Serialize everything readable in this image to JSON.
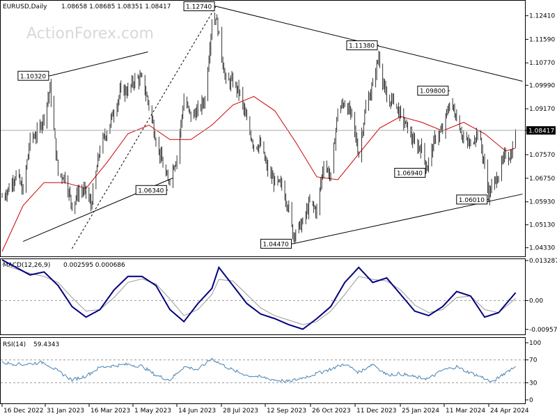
{
  "header": {
    "symbol": "EURUSD,Daily",
    "ohlc": "1.08658 1.08685 1.08351 1.08417",
    "watermark": "ActionForex.com"
  },
  "chart_data": [
    {
      "type": "candlestick",
      "name": "EURUSD,Daily",
      "ylim": [
        1.0403,
        1.1291
      ],
      "y_ticks": [
        "1.12410",
        "1.11590",
        "1.10770",
        "1.09990",
        "1.09170",
        "1.08417",
        "1.07570",
        "1.06750",
        "1.05930",
        "1.05130",
        "1.04330"
      ],
      "current_price": "1.08417",
      "annotations": [
        {
          "label": "1.10320",
          "x": "2023-02-02",
          "value": 1.1032
        },
        {
          "label": "1.12740",
          "x": "2023-07-18",
          "value": 1.1274
        },
        {
          "label": "1.06340",
          "x": "2023-05-31",
          "value": 1.0634
        },
        {
          "label": "1.04470",
          "x": "2023-10-03",
          "value": 1.0447
        },
        {
          "label": "1.11380",
          "x": "2023-12-28",
          "value": 1.1138
        },
        {
          "label": "1.09800",
          "x": "2024-03-08",
          "value": 1.098
        },
        {
          "label": "1.06940",
          "x": "2024-02-14",
          "value": 1.0694
        },
        {
          "label": "1.06010",
          "x": "2024-04-16",
          "value": 1.0601
        }
      ],
      "price_path": [
        [
          "2022-12-16",
          1.061
        ],
        [
          "2022-12-23",
          1.064
        ],
        [
          "2022-12-30",
          1.069
        ],
        [
          "2023-01-06",
          1.063
        ],
        [
          "2023-01-13",
          1.081
        ],
        [
          "2023-01-20",
          1.083
        ],
        [
          "2023-01-27",
          1.089
        ],
        [
          "2023-02-02",
          1.099
        ],
        [
          "2023-02-10",
          1.069
        ],
        [
          "2023-02-17",
          1.068
        ],
        [
          "2023-02-24",
          1.058
        ],
        [
          "2023-03-03",
          1.063
        ],
        [
          "2023-03-10",
          1.063
        ],
        [
          "2023-03-15",
          1.058
        ],
        [
          "2023-03-24",
          1.078
        ],
        [
          "2023-03-31",
          1.084
        ],
        [
          "2023-04-07",
          1.091
        ],
        [
          "2023-04-14",
          1.098
        ],
        [
          "2023-04-21",
          1.098
        ],
        [
          "2023-04-28",
          1.102
        ],
        [
          "2023-05-05",
          1.102
        ],
        [
          "2023-05-12",
          1.093
        ],
        [
          "2023-05-19",
          1.081
        ],
        [
          "2023-05-26",
          1.072
        ],
        [
          "2023-05-31",
          1.066
        ],
        [
          "2023-06-09",
          1.075
        ],
        [
          "2023-06-16",
          1.095
        ],
        [
          "2023-06-23",
          1.089
        ],
        [
          "2023-06-30",
          1.091
        ],
        [
          "2023-07-07",
          1.095
        ],
        [
          "2023-07-14",
          1.122
        ],
        [
          "2023-07-18",
          1.124
        ],
        [
          "2023-07-28",
          1.101
        ],
        [
          "2023-08-04",
          1.101
        ],
        [
          "2023-08-11",
          1.097
        ],
        [
          "2023-08-18",
          1.087
        ],
        [
          "2023-08-25",
          1.079
        ],
        [
          "2023-09-01",
          1.079
        ],
        [
          "2023-09-08",
          1.07
        ],
        [
          "2023-09-15",
          1.066
        ],
        [
          "2023-09-22",
          1.065
        ],
        [
          "2023-09-29",
          1.057
        ],
        [
          "2023-10-03",
          1.048
        ],
        [
          "2023-10-13",
          1.052
        ],
        [
          "2023-10-20",
          1.059
        ],
        [
          "2023-10-27",
          1.056
        ],
        [
          "2023-11-03",
          1.073
        ],
        [
          "2023-11-10",
          1.068
        ],
        [
          "2023-11-17",
          1.091
        ],
        [
          "2023-11-24",
          1.094
        ],
        [
          "2023-12-01",
          1.089
        ],
        [
          "2023-12-08",
          1.076
        ],
        [
          "2023-12-15",
          1.092
        ],
        [
          "2023-12-22",
          1.1
        ],
        [
          "2023-12-28",
          1.11
        ],
        [
          "2024-01-05",
          1.094
        ],
        [
          "2024-01-12",
          1.095
        ],
        [
          "2024-01-19",
          1.089
        ],
        [
          "2024-01-26",
          1.085
        ],
        [
          "2024-02-02",
          1.079
        ],
        [
          "2024-02-09",
          1.078
        ],
        [
          "2024-02-14",
          1.071
        ],
        [
          "2024-02-23",
          1.082
        ],
        [
          "2024-03-01",
          1.084
        ],
        [
          "2024-03-08",
          1.094
        ],
        [
          "2024-03-15",
          1.089
        ],
        [
          "2024-03-22",
          1.081
        ],
        [
          "2024-03-29",
          1.079
        ],
        [
          "2024-04-05",
          1.084
        ],
        [
          "2024-04-10",
          1.076
        ],
        [
          "2024-04-16",
          1.062
        ],
        [
          "2024-04-26",
          1.069
        ],
        [
          "2024-05-03",
          1.076
        ],
        [
          "2024-05-08",
          1.075
        ],
        [
          "2024-05-10",
          1.078
        ],
        [
          "2024-05-13",
          1.084
        ]
      ],
      "moving_average": [
        [
          "2022-12-16",
          1.042
        ],
        [
          "2023-01-06",
          1.058
        ],
        [
          "2023-01-27",
          1.066
        ],
        [
          "2023-02-17",
          1.066
        ],
        [
          "2023-03-10",
          1.064
        ],
        [
          "2023-03-31",
          1.073
        ],
        [
          "2023-04-21",
          1.083
        ],
        [
          "2023-05-12",
          1.086
        ],
        [
          "2023-06-02",
          1.081
        ],
        [
          "2023-06-23",
          1.081
        ],
        [
          "2023-07-14",
          1.086
        ],
        [
          "2023-08-04",
          1.093
        ],
        [
          "2023-08-25",
          1.096
        ],
        [
          "2023-09-15",
          1.091
        ],
        [
          "2023-10-06",
          1.08
        ],
        [
          "2023-10-27",
          1.068
        ],
        [
          "2023-11-17",
          1.067
        ],
        [
          "2023-12-08",
          1.076
        ],
        [
          "2023-12-29",
          1.085
        ],
        [
          "2024-01-19",
          1.089
        ],
        [
          "2024-02-09",
          1.087
        ],
        [
          "2024-03-01",
          1.084
        ],
        [
          "2024-03-22",
          1.087
        ],
        [
          "2024-04-12",
          1.083
        ],
        [
          "2024-05-03",
          1.077
        ],
        [
          "2024-05-13",
          1.078
        ]
      ],
      "trendlines": [
        {
          "from": [
            "2023-02-02",
            1.1032
          ],
          "to": [
            "2023-05-11",
            1.1115
          ]
        },
        {
          "from": [
            "2023-01-06",
            1.0455
          ],
          "to": [
            "2023-06-05",
            1.0676
          ]
        },
        {
          "from": [
            "2023-02-24",
            1.043
          ],
          "to": [
            "2023-07-18",
            1.1274
          ],
          "style": "dashed"
        },
        {
          "from": [
            "2023-07-18",
            1.1274
          ],
          "to": [
            "2024-05-20",
            1.1013
          ]
        },
        {
          "from": [
            "2023-10-03",
            1.0447
          ],
          "to": [
            "2024-05-20",
            1.062
          ]
        }
      ]
    },
    {
      "type": "line",
      "name": "MACD(12,26,9)",
      "header_values": "0.002595 0.000686",
      "y_ticks": [
        "0.013287",
        "0.00",
        "-0.009572"
      ],
      "ylim": [
        -0.011,
        0.0135
      ],
      "series": [
        {
          "values": [
            [
              "2022-12-16",
              0.0135
            ],
            [
              "2022-12-30",
              0.011
            ],
            [
              "2023-01-13",
              0.0085
            ],
            [
              "2023-01-27",
              0.0095
            ],
            [
              "2023-02-10",
              0.005
            ],
            [
              "2023-02-24",
              -0.002
            ],
            [
              "2023-03-10",
              -0.0055
            ],
            [
              "2023-03-24",
              -0.003
            ],
            [
              "2023-04-07",
              0.0035
            ],
            [
              "2023-04-21",
              0.008
            ],
            [
              "2023-05-05",
              0.008
            ],
            [
              "2023-05-19",
              0.005
            ],
            [
              "2023-06-02",
              -0.003
            ],
            [
              "2023-06-16",
              -0.007
            ],
            [
              "2023-06-30",
              -0.001
            ],
            [
              "2023-07-14",
              0.004
            ],
            [
              "2023-07-21",
              0.011
            ],
            [
              "2023-08-04",
              0.005
            ],
            [
              "2023-08-18",
              -0.001
            ],
            [
              "2023-09-01",
              -0.0045
            ],
            [
              "2023-09-15",
              -0.006
            ],
            [
              "2023-09-29",
              -0.008
            ],
            [
              "2023-10-13",
              -0.0095
            ],
            [
              "2023-10-27",
              -0.006
            ],
            [
              "2023-11-10",
              -0.002
            ],
            [
              "2023-11-24",
              0.006
            ],
            [
              "2023-12-08",
              0.011
            ],
            [
              "2023-12-22",
              0.006
            ],
            [
              "2024-01-05",
              0.0075
            ],
            [
              "2024-01-19",
              0.002
            ],
            [
              "2024-02-02",
              -0.0035
            ],
            [
              "2024-02-16",
              -0.005
            ],
            [
              "2024-03-01",
              -0.002
            ],
            [
              "2024-03-15",
              0.003
            ],
            [
              "2024-03-29",
              0.0015
            ],
            [
              "2024-04-12",
              -0.0055
            ],
            [
              "2024-04-26",
              -0.004
            ],
            [
              "2024-05-13",
              0.0026
            ]
          ]
        },
        {
          "values": [
            [
              "2022-12-16",
              0.012
            ],
            [
              "2022-12-30",
              0.0105
            ],
            [
              "2023-01-13",
              0.009
            ],
            [
              "2023-01-27",
              0.008
            ],
            [
              "2023-02-10",
              0.006
            ],
            [
              "2023-02-24",
              0.001
            ],
            [
              "2023-03-10",
              -0.0035
            ],
            [
              "2023-03-24",
              -0.003
            ],
            [
              "2023-04-07",
              0.001
            ],
            [
              "2023-04-21",
              0.006
            ],
            [
              "2023-05-05",
              0.0072
            ],
            [
              "2023-05-19",
              0.0055
            ],
            [
              "2023-06-02",
              0.0005
            ],
            [
              "2023-06-16",
              -0.005
            ],
            [
              "2023-06-30",
              -0.003
            ],
            [
              "2023-07-14",
              0.002
            ],
            [
              "2023-07-21",
              0.007
            ],
            [
              "2023-08-04",
              0.0065
            ],
            [
              "2023-08-18",
              0.002
            ],
            [
              "2023-09-01",
              -0.0025
            ],
            [
              "2023-09-15",
              -0.005
            ],
            [
              "2023-09-29",
              -0.0065
            ],
            [
              "2023-10-13",
              -0.008
            ],
            [
              "2023-10-27",
              -0.007
            ],
            [
              "2023-11-10",
              -0.0035
            ],
            [
              "2023-11-24",
              0.002
            ],
            [
              "2023-12-08",
              0.008
            ],
            [
              "2023-12-22",
              0.007
            ],
            [
              "2024-01-05",
              0.0065
            ],
            [
              "2024-01-19",
              0.0035
            ],
            [
              "2024-02-02",
              -0.0015
            ],
            [
              "2024-02-16",
              -0.004
            ],
            [
              "2024-03-01",
              -0.003
            ],
            [
              "2024-03-15",
              0.001
            ],
            [
              "2024-03-29",
              0.0015
            ],
            [
              "2024-04-12",
              -0.003
            ],
            [
              "2024-04-26",
              -0.004
            ],
            [
              "2024-05-13",
              0.0007
            ]
          ]
        }
      ]
    },
    {
      "type": "line",
      "name": "RSI(14)",
      "header_value": "59.4343",
      "ylim": [
        0,
        100
      ],
      "y_ticks": [
        "100",
        "70",
        "30",
        "0"
      ],
      "levels": [
        70,
        30
      ],
      "series": [
        {
          "values": [
            [
              "2022-12-16",
              65
            ],
            [
              "2023-01-06",
              62
            ],
            [
              "2023-01-27",
              66
            ],
            [
              "2023-02-10",
              50
            ],
            [
              "2023-02-24",
              35
            ],
            [
              "2023-03-10",
              42
            ],
            [
              "2023-03-24",
              57
            ],
            [
              "2023-04-07",
              60
            ],
            [
              "2023-04-21",
              62
            ],
            [
              "2023-05-05",
              59
            ],
            [
              "2023-05-19",
              43
            ],
            [
              "2023-06-02",
              35
            ],
            [
              "2023-06-16",
              58
            ],
            [
              "2023-06-30",
              53
            ],
            [
              "2023-07-14",
              72
            ],
            [
              "2023-07-21",
              65
            ],
            [
              "2023-08-04",
              52
            ],
            [
              "2023-08-18",
              43
            ],
            [
              "2023-09-01",
              40
            ],
            [
              "2023-09-15",
              35
            ],
            [
              "2023-09-29",
              32
            ],
            [
              "2023-10-13",
              39
            ],
            [
              "2023-10-27",
              46
            ],
            [
              "2023-11-10",
              54
            ],
            [
              "2023-11-24",
              63
            ],
            [
              "2023-12-08",
              48
            ],
            [
              "2023-12-22",
              63
            ],
            [
              "2024-01-05",
              44
            ],
            [
              "2024-01-19",
              46
            ],
            [
              "2024-02-02",
              40
            ],
            [
              "2024-02-16",
              37
            ],
            [
              "2024-03-01",
              52
            ],
            [
              "2024-03-15",
              58
            ],
            [
              "2024-03-29",
              47
            ],
            [
              "2024-04-12",
              38
            ],
            [
              "2024-04-19",
              30
            ],
            [
              "2024-05-03",
              48
            ],
            [
              "2024-05-13",
              59
            ]
          ]
        }
      ]
    }
  ],
  "time_axis": {
    "labels": [
      "16 Dec 2022",
      "31 Jan 2023",
      "16 Mar 2023",
      "1 May 2023",
      "14 Jun 2023",
      "28 Jul 2023",
      "12 Sep 2023",
      "26 Oct 2023",
      "11 Dec 2023",
      "25 Jan 2024",
      "11 Mar 2024",
      "24 Apr 2024"
    ]
  },
  "colors": {
    "price": "#000000",
    "moving_average": "#cc0000",
    "macd_main": "#000080",
    "macd_signal": "#999999",
    "rsi": "#4682b4",
    "watermark": "#d8d8d8",
    "grid": "#bbbbbb"
  }
}
